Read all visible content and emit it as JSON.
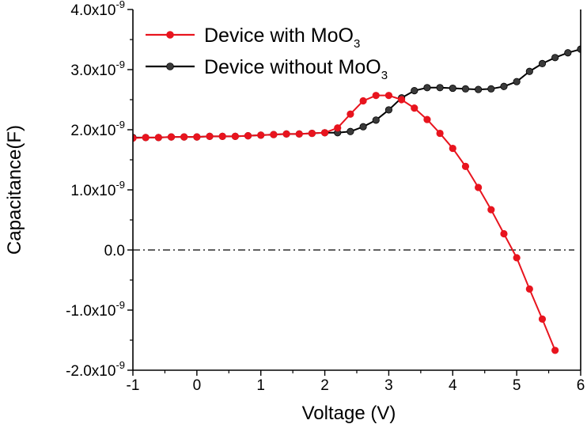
{
  "chart_data": {
    "type": "line",
    "xlabel": "Voltage (V)",
    "ylabel": "Capacitance(F)",
    "xlim": [
      -1,
      6
    ],
    "ylim": [
      -2e-09,
      4e-09
    ],
    "x_ticks": [
      -1,
      0,
      1,
      2,
      3,
      4,
      5,
      6
    ],
    "x_tick_labels": [
      "-1",
      "0",
      "1",
      "2",
      "3",
      "4",
      "5",
      "6"
    ],
    "y_ticks": [
      {
        "value": 4e-09,
        "base": "4.0x10",
        "exp": "-9"
      },
      {
        "value": 3e-09,
        "base": "3.0x10",
        "exp": "-9"
      },
      {
        "value": 2e-09,
        "base": "2.0x10",
        "exp": "-9"
      },
      {
        "value": 1e-09,
        "base": "1.0x10",
        "exp": "-9"
      },
      {
        "value": 0,
        "base": "0.0",
        "exp": ""
      },
      {
        "value": -1e-09,
        "base": "-1.0x10",
        "exp": "-9"
      },
      {
        "value": -2e-09,
        "base": "-2.0x10",
        "exp": "-9"
      }
    ],
    "reference_line": {
      "y": 0,
      "style": "dash-dot",
      "color": "#000000"
    },
    "legend_position": "top-left",
    "series": [
      {
        "name_main": "Device with MoO",
        "name_sub": "3",
        "color": "#e8141e",
        "marker_fill": "#e8141e",
        "x": [
          -1.0,
          -0.8,
          -0.6,
          -0.4,
          -0.2,
          0.0,
          0.2,
          0.4,
          0.6,
          0.8,
          1.0,
          1.2,
          1.4,
          1.6,
          1.8,
          2.0,
          2.2,
          2.4,
          2.6,
          2.8,
          3.0,
          3.2,
          3.4,
          3.6,
          3.8,
          4.0,
          4.2,
          4.4,
          4.6,
          4.8,
          5.0,
          5.2,
          5.4,
          5.6
        ],
        "y": [
          1.86e-09,
          1.87e-09,
          1.87e-09,
          1.88e-09,
          1.88e-09,
          1.88e-09,
          1.89e-09,
          1.89e-09,
          1.89e-09,
          1.9e-09,
          1.91e-09,
          1.92e-09,
          1.93e-09,
          1.93e-09,
          1.94e-09,
          1.95e-09,
          2.03e-09,
          2.26e-09,
          2.48e-09,
          2.57e-09,
          2.57e-09,
          2.5e-09,
          2.36e-09,
          2.17e-09,
          1.94e-09,
          1.69e-09,
          1.39e-09,
          1.04e-09,
          6.7e-10,
          2.7e-10,
          -1.3e-10,
          -6.5e-10,
          -1.15e-09,
          -1.67e-09
        ]
      },
      {
        "name_main": "Device without MoO",
        "name_sub": "3",
        "color": "#000000",
        "marker_fill": "#3a3a3a",
        "x": [
          -1.0,
          -0.8,
          -0.6,
          -0.4,
          -0.2,
          0.0,
          0.2,
          0.4,
          0.6,
          0.8,
          1.0,
          1.2,
          1.4,
          1.6,
          1.8,
          2.0,
          2.2,
          2.4,
          2.6,
          2.8,
          3.0,
          3.2,
          3.4,
          3.6,
          3.8,
          4.0,
          4.2,
          4.4,
          4.6,
          4.8,
          5.0,
          5.2,
          5.4,
          5.6,
          5.8,
          6.0
        ],
        "y": [
          1.87e-09,
          1.87e-09,
          1.87e-09,
          1.88e-09,
          1.88e-09,
          1.88e-09,
          1.89e-09,
          1.89e-09,
          1.89e-09,
          1.9e-09,
          1.91e-09,
          1.92e-09,
          1.93e-09,
          1.93e-09,
          1.94e-09,
          1.95e-09,
          1.95e-09,
          1.97e-09,
          2.05e-09,
          2.16e-09,
          2.33e-09,
          2.53e-09,
          2.65e-09,
          2.7e-09,
          2.7e-09,
          2.69e-09,
          2.68e-09,
          2.67e-09,
          2.68e-09,
          2.72e-09,
          2.8e-09,
          2.97e-09,
          3.1e-09,
          3.2e-09,
          3.28e-09,
          3.34e-09
        ]
      }
    ]
  }
}
